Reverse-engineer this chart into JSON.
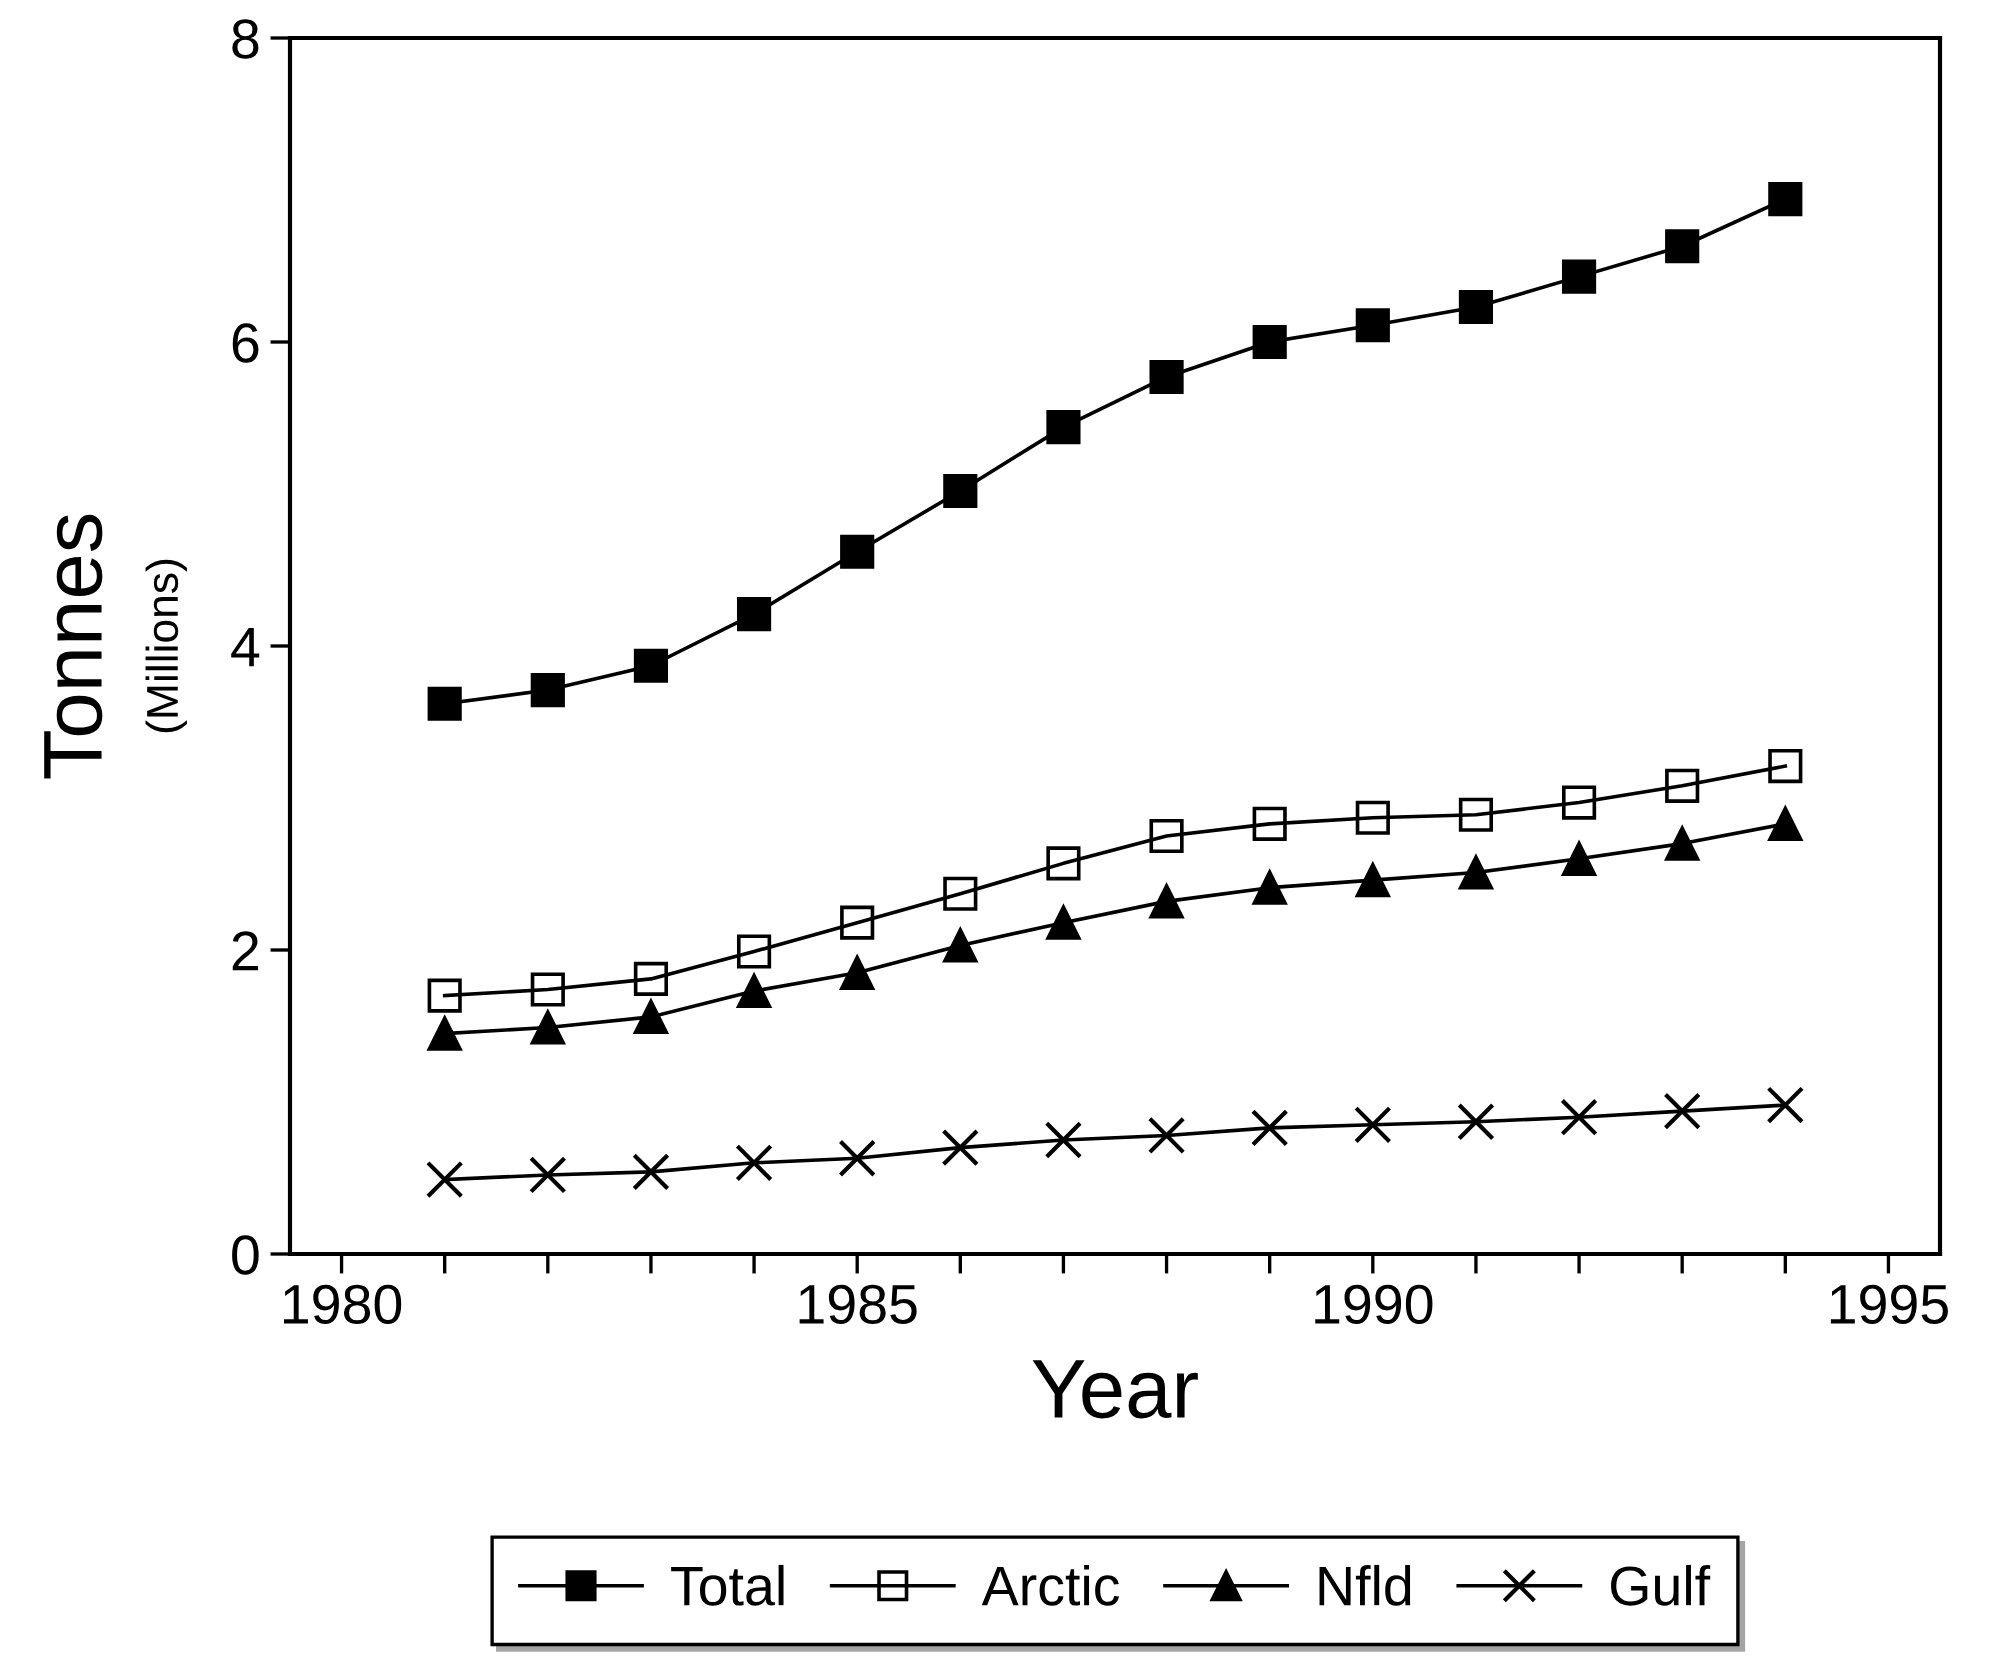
{
  "chart_data": {
    "type": "line",
    "xlabel": "Year",
    "ylabel": "Tonnes",
    "annotations": [
      "(Millions)"
    ],
    "x": [
      1981,
      1982,
      1983,
      1984,
      1985,
      1986,
      1987,
      1988,
      1989,
      1990,
      1991,
      1992,
      1993,
      1994
    ],
    "series": [
      {
        "name": "Total",
        "color": "#000000",
        "marker": "square",
        "values": [
          3.62,
          3.71,
          3.87,
          4.21,
          4.62,
          5.02,
          5.44,
          5.77,
          6.0,
          6.11,
          6.23,
          6.43,
          6.63,
          6.94
        ]
      },
      {
        "name": "Arctic",
        "color": "#000000",
        "marker": "square",
        "values": [
          1.7,
          1.74,
          1.81,
          1.99,
          2.18,
          2.37,
          2.57,
          2.75,
          2.83,
          2.87,
          2.89,
          2.97,
          3.08,
          3.21
        ]
      },
      {
        "name": "Nfld",
        "color": "#000000",
        "marker": "triangle",
        "values": [
          1.45,
          1.49,
          1.56,
          1.73,
          1.85,
          2.03,
          2.18,
          2.32,
          2.41,
          2.46,
          2.51,
          2.6,
          2.7,
          2.83
        ]
      },
      {
        "name": "Gulf",
        "color": "#000000",
        "marker": "cross",
        "values": [
          0.49,
          0.52,
          0.54,
          0.6,
          0.63,
          0.7,
          0.75,
          0.78,
          0.83,
          0.85,
          0.87,
          0.9,
          0.94,
          0.98
        ]
      }
    ],
    "xlim": [
      1979.5,
      1995.5
    ],
    "xticks": [
      1980,
      {
        "value": 1981,
        "label": null
      },
      {
        "value": 1982,
        "label": null
      },
      {
        "value": 1983,
        "label": null
      },
      {
        "value": 1984,
        "label": null
      },
      1985,
      {
        "value": 1986,
        "label": null
      },
      {
        "value": 1987,
        "label": null
      },
      {
        "value": 1988,
        "label": null
      },
      {
        "value": 1989,
        "label": null
      },
      1990,
      {
        "value": 1991,
        "label": null
      },
      {
        "value": 1992,
        "label": null
      },
      {
        "value": 1993,
        "label": null
      },
      {
        "value": 1994,
        "label": null
      },
      1995
    ],
    "ylim": [
      0,
      8
    ],
    "yticks": [
      0,
      2,
      4,
      6,
      8
    ],
    "grid": false,
    "legend": "bottom",
    "line_style": "solid"
  }
}
